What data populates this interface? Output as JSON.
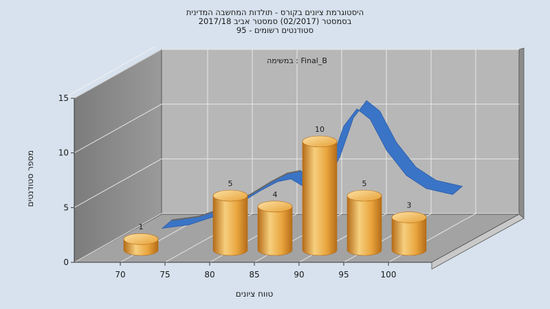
{
  "chart_data": {
    "type": "bar",
    "title_lines": [
      "היסטוגרמת ציונים בקורס - תולדות המחשבה המדינית",
      "בסמסטר  (02/2017)  סמסטר אביב 2017/18",
      "סטודנטים רשומים - 95"
    ],
    "subtitle": "במשימה : Final_B",
    "xlabel": "טווח ציונים",
    "ylabel": "מספר סטודנטים",
    "x_ticks": [
      "70",
      "75",
      "80",
      "85",
      "90",
      "95",
      "100"
    ],
    "y_ticks": [
      "0",
      "5",
      "10",
      "15"
    ],
    "ylim": [
      0,
      15
    ],
    "bars": [
      {
        "x": 72.5,
        "value": 1
      },
      {
        "x": 82.5,
        "value": 5
      },
      {
        "x": 87.5,
        "value": 4
      },
      {
        "x": 92.5,
        "value": 10
      },
      {
        "x": 97.5,
        "value": 5
      },
      {
        "x": 102.5,
        "value": 3
      }
    ],
    "curve": {
      "type": "normal-distribution",
      "color": "#3a74c6",
      "points": [
        [
          66,
          0.2
        ],
        [
          70,
          0.6
        ],
        [
          74,
          1.6
        ],
        [
          78,
          3.2
        ],
        [
          81,
          4.6
        ],
        [
          83.5,
          5.6
        ],
        [
          85.5,
          5.9
        ],
        [
          87.5,
          5.0
        ],
        [
          89.5,
          4.6
        ],
        [
          91.5,
          7.6
        ],
        [
          93.5,
          12.0
        ],
        [
          95.5,
          14.0
        ],
        [
          97.5,
          12.8
        ],
        [
          100,
          9.2
        ],
        [
          103,
          6.3
        ],
        [
          106,
          4.8
        ],
        [
          110,
          4.1
        ]
      ]
    },
    "colors": {
      "bar_light": "#f6cf7e",
      "bar_mid": "#e9a53e",
      "bar_dark": "#b56c17",
      "curve": "#3a74c6",
      "curve_dark": "#2a5aa8",
      "back_wall": "#b7b7b7",
      "side_wall": "#8a8a8a",
      "floor": "#a3a3a3",
      "background": "#d7e2ee"
    },
    "grid": true
  }
}
